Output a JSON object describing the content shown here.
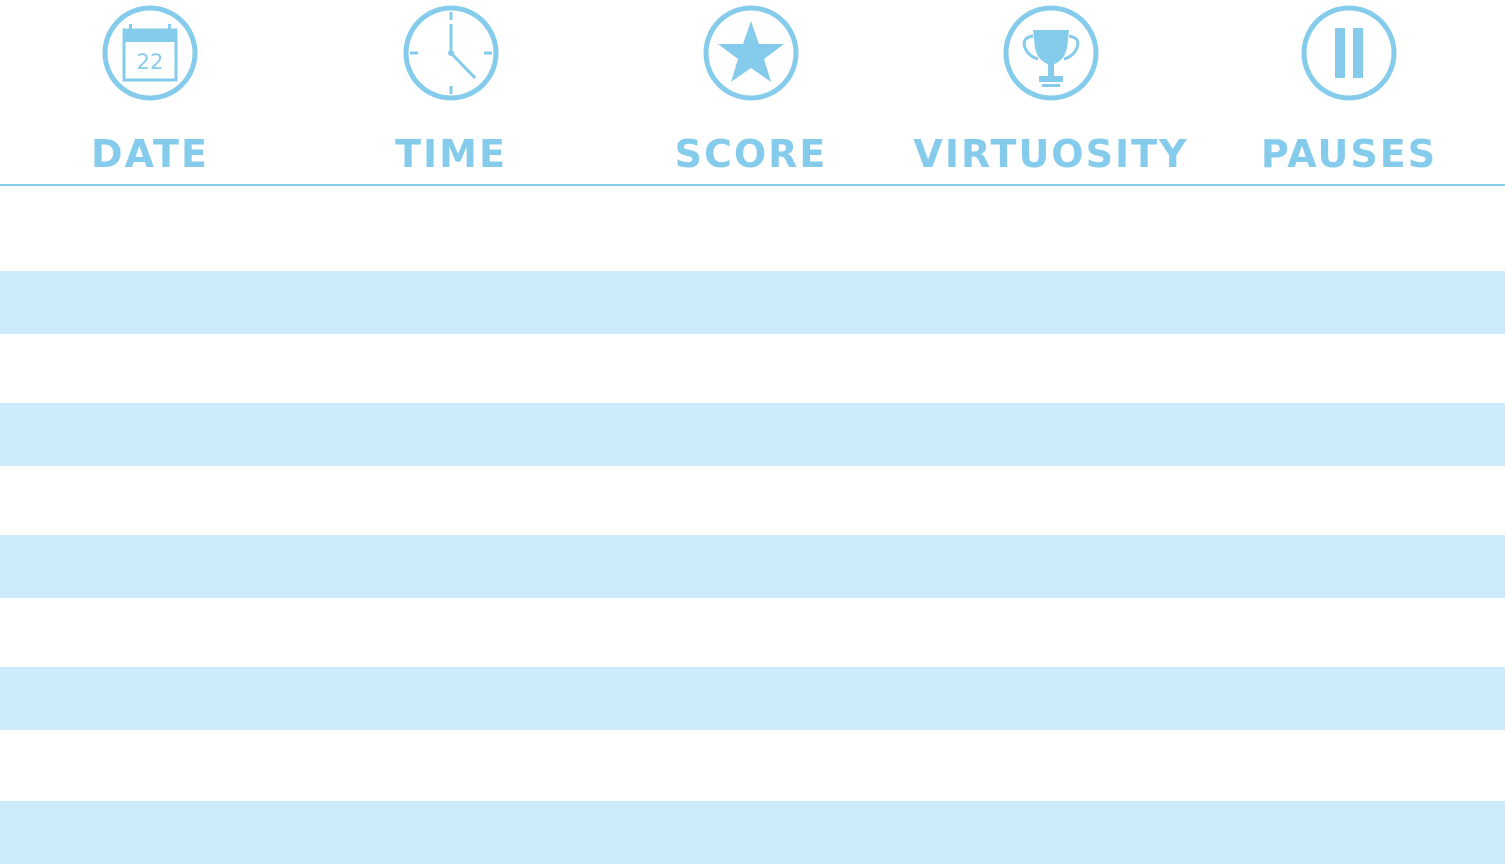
{
  "colors": {
    "accent": "#85CBEB",
    "stripe": "#CCEBFA",
    "background": "#FFFFFF"
  },
  "columns": [
    {
      "label": "DATE",
      "icon": "calendar-icon",
      "calendar_day": "22"
    },
    {
      "label": "TIME",
      "icon": "clock-icon"
    },
    {
      "label": "SCORE",
      "icon": "star-icon"
    },
    {
      "label": "VIRTUOSITY",
      "icon": "trophy-icon"
    },
    {
      "label": "PAUSES",
      "icon": "pause-icon"
    }
  ],
  "rows": [
    {
      "striped": false
    },
    {
      "striped": true
    },
    {
      "striped": false
    },
    {
      "striped": true
    },
    {
      "striped": false
    },
    {
      "striped": true
    },
    {
      "striped": false
    },
    {
      "striped": true
    },
    {
      "striped": false
    },
    {
      "striped": true
    }
  ]
}
